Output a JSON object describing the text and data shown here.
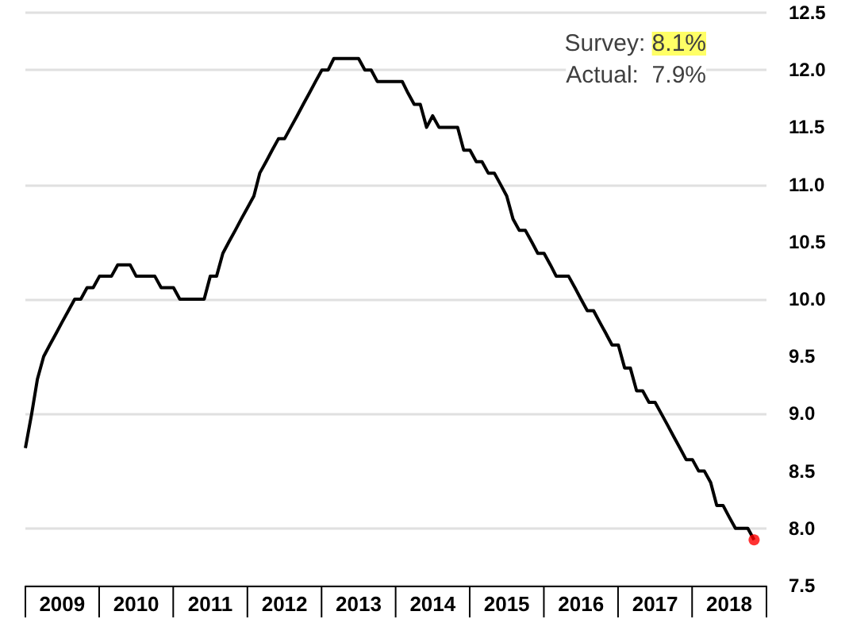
{
  "chart_data": {
    "type": "line",
    "x": [
      "2009-01",
      "2009-02",
      "2009-03",
      "2009-04",
      "2009-05",
      "2009-06",
      "2009-07",
      "2009-08",
      "2009-09",
      "2009-10",
      "2009-11",
      "2009-12",
      "2010-01",
      "2010-02",
      "2010-03",
      "2010-04",
      "2010-05",
      "2010-06",
      "2010-07",
      "2010-08",
      "2010-09",
      "2010-10",
      "2010-11",
      "2010-12",
      "2011-01",
      "2011-02",
      "2011-03",
      "2011-04",
      "2011-05",
      "2011-06",
      "2011-07",
      "2011-08",
      "2011-09",
      "2011-10",
      "2011-11",
      "2011-12",
      "2012-01",
      "2012-02",
      "2012-03",
      "2012-04",
      "2012-05",
      "2012-06",
      "2012-07",
      "2012-08",
      "2012-09",
      "2012-10",
      "2012-11",
      "2012-12",
      "2013-01",
      "2013-02",
      "2013-03",
      "2013-04",
      "2013-05",
      "2013-06",
      "2013-07",
      "2013-08",
      "2013-09",
      "2013-10",
      "2013-11",
      "2013-12",
      "2014-01",
      "2014-02",
      "2014-03",
      "2014-04",
      "2014-05",
      "2014-06",
      "2014-07",
      "2014-08",
      "2014-09",
      "2014-10",
      "2014-11",
      "2014-12",
      "2015-01",
      "2015-02",
      "2015-03",
      "2015-04",
      "2015-05",
      "2015-06",
      "2015-07",
      "2015-08",
      "2015-09",
      "2015-10",
      "2015-11",
      "2015-12",
      "2016-01",
      "2016-02",
      "2016-03",
      "2016-04",
      "2016-05",
      "2016-06",
      "2016-07",
      "2016-08",
      "2016-09",
      "2016-10",
      "2016-11",
      "2016-12",
      "2017-01",
      "2017-02",
      "2017-03",
      "2017-04",
      "2017-05",
      "2017-06",
      "2017-07",
      "2017-08",
      "2017-09",
      "2017-10",
      "2017-11",
      "2017-12",
      "2018-01",
      "2018-02",
      "2018-03",
      "2018-04",
      "2018-05",
      "2018-06",
      "2018-07",
      "2018-08",
      "2018-09",
      "2018-10",
      "2018-11"
    ],
    "series": [
      {
        "color": "#000000",
        "values": [
          8.7,
          9.0,
          9.3,
          9.5,
          9.6,
          9.7,
          9.8,
          9.9,
          10.0,
          10.0,
          10.1,
          10.1,
          10.2,
          10.2,
          10.2,
          10.3,
          10.3,
          10.3,
          10.2,
          10.2,
          10.2,
          10.2,
          10.1,
          10.1,
          10.1,
          10.0,
          10.0,
          10.0,
          10.0,
          10.0,
          10.2,
          10.2,
          10.4,
          10.5,
          10.6,
          10.7,
          10.8,
          10.9,
          11.1,
          11.2,
          11.3,
          11.4,
          11.4,
          11.5,
          11.6,
          11.7,
          11.8,
          11.9,
          12.0,
          12.0,
          12.1,
          12.1,
          12.1,
          12.1,
          12.1,
          12.0,
          12.0,
          11.9,
          11.9,
          11.9,
          11.9,
          11.9,
          11.8,
          11.7,
          11.7,
          11.5,
          11.6,
          11.5,
          11.5,
          11.5,
          11.5,
          11.3,
          11.3,
          11.2,
          11.2,
          11.1,
          11.1,
          11.0,
          10.9,
          10.7,
          10.6,
          10.6,
          10.5,
          10.4,
          10.4,
          10.3,
          10.2,
          10.2,
          10.2,
          10.1,
          10.0,
          9.9,
          9.9,
          9.8,
          9.7,
          9.6,
          9.6,
          9.4,
          9.4,
          9.2,
          9.2,
          9.1,
          9.1,
          9.0,
          8.9,
          8.8,
          8.7,
          8.6,
          8.6,
          8.5,
          8.5,
          8.4,
          8.2,
          8.2,
          8.1,
          8.0,
          8.0,
          8.0,
          7.9
        ]
      },
      {
        "type": "scatter",
        "marker": "circle",
        "color": "#ff0000",
        "x": [
          "2018-11"
        ],
        "values": [
          7.9
        ]
      }
    ],
    "xlim": [
      "2009-01",
      "2019-01"
    ],
    "xticks": [
      {
        "value": "2009-07",
        "label": "2009"
      },
      {
        "value": "2010-07",
        "label": "2010"
      },
      {
        "value": "2011-07",
        "label": "2011"
      },
      {
        "value": "2012-07",
        "label": "2012"
      },
      {
        "value": "2013-07",
        "label": "2013"
      },
      {
        "value": "2014-07",
        "label": "2014"
      },
      {
        "value": "2015-07",
        "label": "2015"
      },
      {
        "value": "2016-07",
        "label": "2016"
      },
      {
        "value": "2017-07",
        "label": "2017"
      },
      {
        "value": "2018-07",
        "label": "2018"
      }
    ],
    "ylim": [
      7.5,
      12.5
    ],
    "yticks": [
      7.5,
      {
        "value": 8,
        "label": "8.0"
      },
      8.5,
      {
        "value": 9,
        "label": "9.0"
      },
      9.5,
      {
        "value": 10,
        "label": "10.0"
      },
      10.5,
      {
        "value": 11,
        "label": "11.0"
      },
      11.5,
      {
        "value": 12,
        "label": "12.0"
      },
      12.5
    ],
    "grid": "y",
    "marker": "none",
    "line_style": "solid",
    "annotations": [
      "Survey: 8.1%",
      "Actual: 7.9%"
    ]
  }
}
